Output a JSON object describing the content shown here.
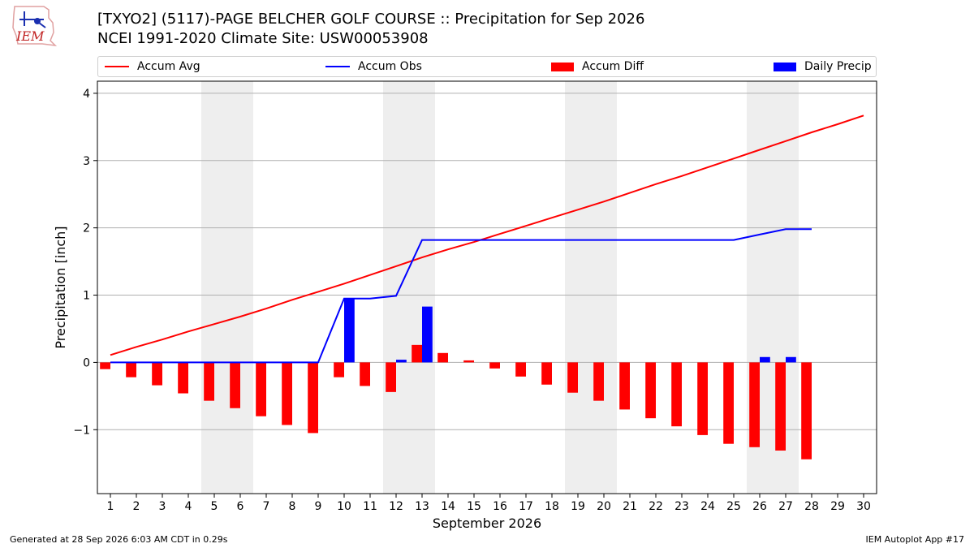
{
  "header": {
    "logo_text": "IEM",
    "title_line1": "[TXYO2] (5117)-PAGE BELCHER GOLF COURSE :: Precipitation for Sep 2026",
    "title_line2": "NCEI 1991-2020 Climate Site: USW00053908"
  },
  "legend": {
    "items": [
      {
        "label": "Accum Avg",
        "kind": "line",
        "color": "#ff0000"
      },
      {
        "label": "Accum Obs",
        "kind": "line",
        "color": "#0000ff"
      },
      {
        "label": "Accum Diff",
        "kind": "box",
        "color": "#ff0000"
      },
      {
        "label": "Daily Precip",
        "kind": "box",
        "color": "#0000ff"
      }
    ]
  },
  "footer": {
    "left": "Generated at 28 Sep 2026 6:03 AM CDT in 0.29s",
    "right": "IEM Autoplot App #17"
  },
  "chart_data": {
    "type": "bar",
    "xlabel": "September 2026",
    "ylabel": "Precipitation [inch]",
    "xlim": [
      0.5,
      30.5
    ],
    "ylim": [
      -1.95,
      4.18
    ],
    "x_ticks": [
      1,
      2,
      3,
      4,
      5,
      6,
      7,
      8,
      9,
      10,
      11,
      12,
      13,
      14,
      15,
      16,
      17,
      18,
      19,
      20,
      21,
      22,
      23,
      24,
      25,
      26,
      27,
      28,
      29,
      30
    ],
    "y_ticks": [
      -1,
      0,
      1,
      2,
      3,
      4
    ],
    "y_tick_labels": [
      "−1",
      "0",
      "1",
      "2",
      "3",
      "4"
    ],
    "grid": "horizontal",
    "legend_position": "top",
    "weekend_shading": [
      [
        4.5,
        6.5
      ],
      [
        11.5,
        13.5
      ],
      [
        18.5,
        20.5
      ],
      [
        25.5,
        27.5
      ]
    ],
    "shade_color": "#eeeeee",
    "days": [
      1,
      2,
      3,
      4,
      5,
      6,
      7,
      8,
      9,
      10,
      11,
      12,
      13,
      14,
      15,
      16,
      17,
      18,
      19,
      20,
      21,
      22,
      23,
      24,
      25,
      26,
      27,
      28,
      29,
      30
    ],
    "series": [
      {
        "name": "Accum Avg",
        "kind": "line",
        "color": "#ff0000",
        "x": [
          1,
          2,
          3,
          4,
          5,
          6,
          7,
          8,
          9,
          10,
          11,
          12,
          13,
          14,
          15,
          16,
          17,
          18,
          19,
          20,
          21,
          22,
          23,
          24,
          25,
          26,
          27,
          28,
          29,
          30
        ],
        "values": [
          0.11,
          0.23,
          0.34,
          0.46,
          0.57,
          0.68,
          0.8,
          0.93,
          1.05,
          1.17,
          1.3,
          1.43,
          1.56,
          1.68,
          1.79,
          1.91,
          2.03,
          2.15,
          2.27,
          2.39,
          2.52,
          2.65,
          2.77,
          2.9,
          3.03,
          3.16,
          3.29,
          3.42,
          3.54,
          3.67
        ]
      },
      {
        "name": "Accum Obs",
        "kind": "line",
        "color": "#0000ff",
        "x": [
          1,
          2,
          3,
          4,
          5,
          6,
          7,
          8,
          9,
          10,
          11,
          12,
          13,
          14,
          15,
          16,
          17,
          18,
          19,
          20,
          21,
          22,
          23,
          24,
          25,
          26,
          27,
          28
        ],
        "values": [
          0,
          0,
          0,
          0,
          0,
          0,
          0,
          0,
          0,
          0.95,
          0.95,
          0.99,
          1.82,
          1.82,
          1.82,
          1.82,
          1.82,
          1.82,
          1.82,
          1.82,
          1.82,
          1.82,
          1.82,
          1.82,
          1.82,
          1.9,
          1.98,
          1.98
        ]
      },
      {
        "name": "Accum Diff",
        "kind": "bar",
        "color": "#ff0000",
        "x": [
          1,
          2,
          3,
          4,
          5,
          6,
          7,
          8,
          9,
          10,
          11,
          12,
          13,
          14,
          15,
          16,
          17,
          18,
          19,
          20,
          21,
          22,
          23,
          24,
          25,
          26,
          27,
          28
        ],
        "values": [
          -0.1,
          -0.22,
          -0.34,
          -0.46,
          -0.57,
          -0.68,
          -0.8,
          -0.93,
          -1.05,
          -0.22,
          -0.35,
          -0.44,
          0.26,
          0.14,
          0.03,
          -0.09,
          -0.21,
          -0.33,
          -0.45,
          -0.57,
          -0.7,
          -0.83,
          -0.95,
          -1.08,
          -1.21,
          -1.26,
          -1.31,
          -1.44
        ]
      },
      {
        "name": "Daily Precip",
        "kind": "bar",
        "color": "#0000ff",
        "x": [
          1,
          2,
          3,
          4,
          5,
          6,
          7,
          8,
          9,
          10,
          11,
          12,
          13,
          14,
          15,
          16,
          17,
          18,
          19,
          20,
          21,
          22,
          23,
          24,
          25,
          26,
          27,
          28
        ],
        "values": [
          0,
          0,
          0,
          0,
          0,
          0,
          0,
          0,
          0,
          0.95,
          0,
          0.04,
          0.83,
          0,
          0,
          0,
          0,
          0,
          0,
          0,
          0,
          0,
          0,
          0,
          0,
          0.08,
          0.08,
          0
        ]
      }
    ]
  }
}
